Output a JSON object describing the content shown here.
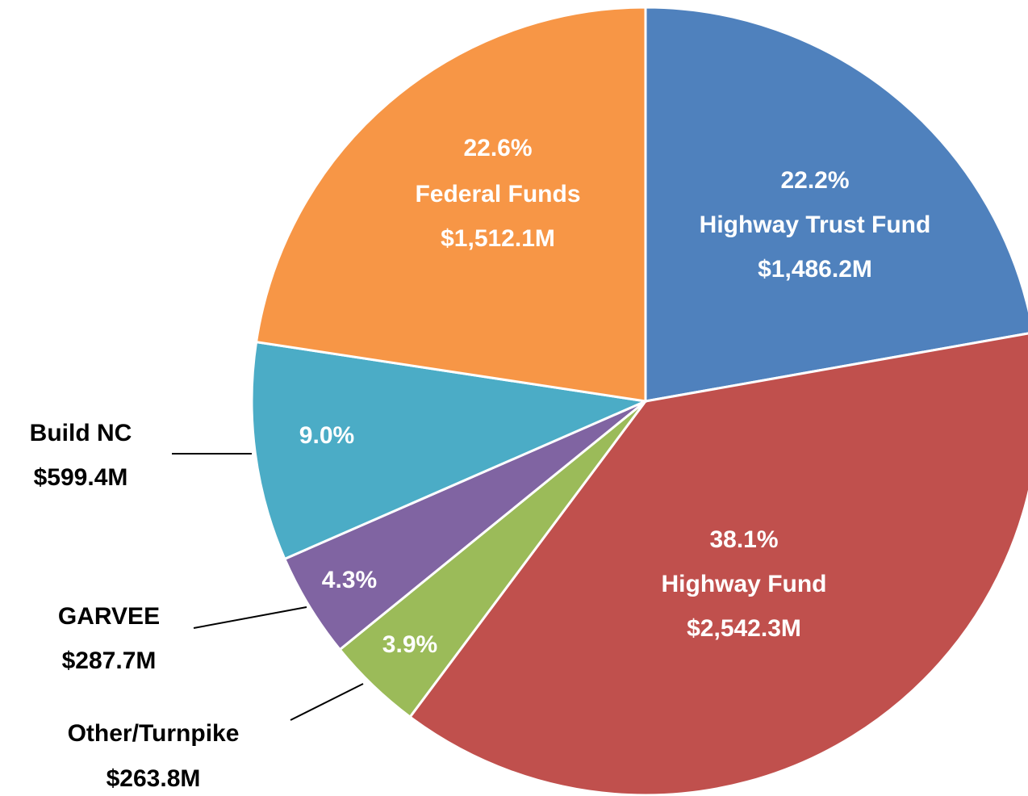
{
  "chart_data": {
    "type": "pie",
    "categories": [
      "Highway Trust Fund",
      "Highway Fund",
      "Other/Turnpike",
      "GARVEE",
      "Build NC",
      "Federal Funds"
    ],
    "values": [
      1486.2,
      2542.3,
      263.8,
      287.7,
      599.4,
      1512.1
    ],
    "value_labels": [
      "$1,486.2M",
      "$2,542.3M",
      "$263.8M",
      "$287.7M",
      "$599.4M",
      "$1,512.1M"
    ],
    "percentages": [
      22.2,
      38.1,
      3.9,
      4.3,
      9.0,
      22.6
    ],
    "percentage_labels": [
      "22.2%",
      "38.1%",
      "3.9%",
      "4.3%",
      "9.0%",
      "22.6%"
    ],
    "colors": [
      "#4f81bd",
      "#c0504d",
      "#9bbb59",
      "#8064a2",
      "#4bacc6",
      "#f79646"
    ]
  }
}
